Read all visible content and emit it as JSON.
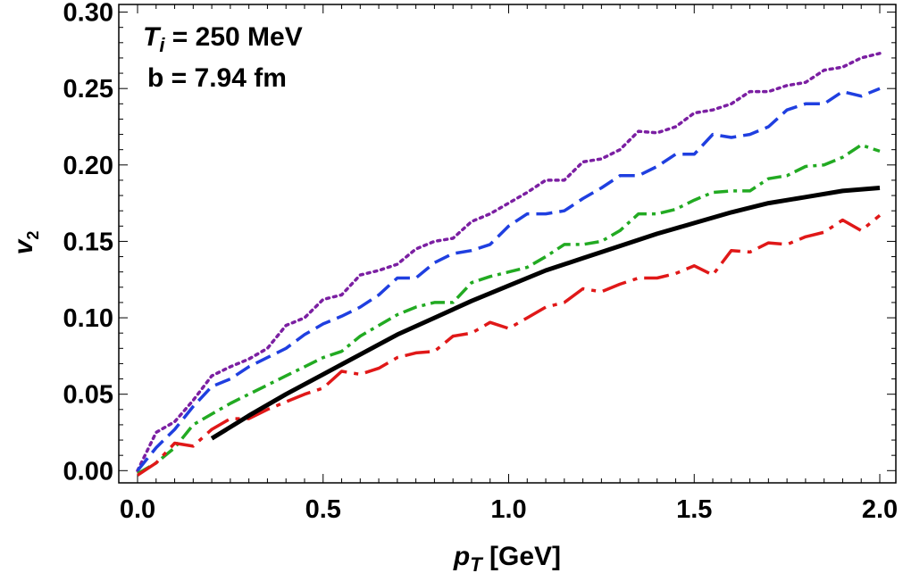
{
  "chart_data": {
    "type": "line",
    "xlabel": "p_T [GeV]",
    "xlabel_parts": {
      "main": "p",
      "sub": "T",
      "rest": " [GeV]"
    },
    "ylabel": "v_2",
    "ylabel_parts": {
      "main": "v",
      "sub": "2"
    },
    "xlim": [
      0.0,
      2.0
    ],
    "ylim": [
      -0.008,
      0.305
    ],
    "xticks": [
      0.0,
      0.5,
      1.0,
      1.5,
      2.0
    ],
    "xtick_labels": [
      "0.0",
      "0.5",
      "1.0",
      "1.5",
      "2.0"
    ],
    "yticks": [
      0.0,
      0.05,
      0.1,
      0.15,
      0.2,
      0.25,
      0.3
    ],
    "ytick_labels": [
      "0.00",
      "0.05",
      "0.10",
      "0.15",
      "0.20",
      "0.25",
      "0.30"
    ],
    "grid": false,
    "annotations": {
      "line1_main": "T",
      "line1_sub": "i",
      "line1_rest": " = 250 MeV",
      "line2": "b = 7.94 fm"
    },
    "series": [
      {
        "color": "#7b1fa2",
        "style": "dotted",
        "x": [
          0.0,
          0.05,
          0.1,
          0.15,
          0.2,
          0.25,
          0.3,
          0.35,
          0.4,
          0.45,
          0.5,
          0.55,
          0.6,
          0.65,
          0.7,
          0.75,
          0.8,
          0.85,
          0.9,
          0.95,
          1.0,
          1.05,
          1.1,
          1.15,
          1.2,
          1.25,
          1.3,
          1.35,
          1.4,
          1.45,
          1.5,
          1.55,
          1.6,
          1.65,
          1.7,
          1.75,
          1.8,
          1.85,
          1.9,
          1.95,
          2.0
        ],
        "y": [
          0.0,
          0.025,
          0.032,
          0.046,
          0.062,
          0.068,
          0.073,
          0.08,
          0.095,
          0.1,
          0.112,
          0.115,
          0.128,
          0.131,
          0.135,
          0.145,
          0.15,
          0.152,
          0.163,
          0.168,
          0.175,
          0.182,
          0.19,
          0.19,
          0.202,
          0.204,
          0.21,
          0.222,
          0.221,
          0.225,
          0.234,
          0.236,
          0.24,
          0.248,
          0.248,
          0.252,
          0.254,
          0.262,
          0.264,
          0.27,
          0.273
        ]
      },
      {
        "color": "#1f3fe0",
        "style": "dashed",
        "x": [
          0.0,
          0.05,
          0.1,
          0.15,
          0.2,
          0.25,
          0.3,
          0.35,
          0.4,
          0.45,
          0.5,
          0.55,
          0.6,
          0.65,
          0.7,
          0.75,
          0.8,
          0.85,
          0.9,
          0.95,
          1.0,
          1.05,
          1.1,
          1.15,
          1.2,
          1.25,
          1.3,
          1.35,
          1.4,
          1.45,
          1.5,
          1.55,
          1.6,
          1.65,
          1.7,
          1.75,
          1.8,
          1.85,
          1.9,
          1.95,
          2.0
        ],
        "y": [
          0.0,
          0.015,
          0.027,
          0.042,
          0.055,
          0.06,
          0.068,
          0.074,
          0.08,
          0.089,
          0.096,
          0.101,
          0.107,
          0.115,
          0.126,
          0.126,
          0.136,
          0.142,
          0.144,
          0.148,
          0.16,
          0.168,
          0.168,
          0.17,
          0.178,
          0.185,
          0.193,
          0.193,
          0.199,
          0.207,
          0.207,
          0.22,
          0.218,
          0.22,
          0.225,
          0.236,
          0.24,
          0.24,
          0.248,
          0.245,
          0.25
        ]
      },
      {
        "color": "#22aa22",
        "style": "dashdot",
        "x": [
          0.0,
          0.05,
          0.1,
          0.15,
          0.2,
          0.25,
          0.3,
          0.35,
          0.4,
          0.45,
          0.5,
          0.55,
          0.6,
          0.65,
          0.7,
          0.75,
          0.8,
          0.85,
          0.9,
          0.95,
          1.0,
          1.05,
          1.1,
          1.15,
          1.2,
          1.25,
          1.3,
          1.35,
          1.4,
          1.45,
          1.5,
          1.55,
          1.6,
          1.65,
          1.7,
          1.75,
          1.8,
          1.85,
          1.9,
          1.95,
          2.0
        ],
        "y": [
          -0.002,
          0.005,
          0.015,
          0.03,
          0.037,
          0.044,
          0.05,
          0.056,
          0.062,
          0.068,
          0.074,
          0.078,
          0.088,
          0.095,
          0.102,
          0.107,
          0.11,
          0.11,
          0.123,
          0.127,
          0.13,
          0.133,
          0.14,
          0.148,
          0.148,
          0.15,
          0.157,
          0.168,
          0.168,
          0.171,
          0.177,
          0.182,
          0.183,
          0.183,
          0.191,
          0.193,
          0.199,
          0.2,
          0.205,
          0.213,
          0.209
        ]
      },
      {
        "color": "#e01818",
        "style": "longdash",
        "x": [
          0.0,
          0.05,
          0.1,
          0.15,
          0.2,
          0.25,
          0.3,
          0.35,
          0.4,
          0.45,
          0.5,
          0.55,
          0.6,
          0.65,
          0.7,
          0.75,
          0.8,
          0.85,
          0.9,
          0.95,
          1.0,
          1.05,
          1.1,
          1.15,
          1.2,
          1.25,
          1.3,
          1.35,
          1.4,
          1.45,
          1.5,
          1.55,
          1.6,
          1.65,
          1.7,
          1.75,
          1.8,
          1.85,
          1.9,
          1.95,
          2.0
        ],
        "y": [
          -0.003,
          0.005,
          0.018,
          0.016,
          0.027,
          0.034,
          0.034,
          0.04,
          0.045,
          0.05,
          0.054,
          0.065,
          0.063,
          0.067,
          0.074,
          0.077,
          0.078,
          0.088,
          0.09,
          0.097,
          0.093,
          0.1,
          0.107,
          0.11,
          0.119,
          0.117,
          0.122,
          0.126,
          0.126,
          0.129,
          0.134,
          0.128,
          0.144,
          0.143,
          0.149,
          0.148,
          0.153,
          0.156,
          0.164,
          0.157,
          0.167
        ]
      },
      {
        "color": "#000000",
        "style": "solid",
        "x": [
          0.2,
          0.3,
          0.4,
          0.5,
          0.6,
          0.7,
          0.8,
          0.9,
          1.0,
          1.1,
          1.2,
          1.3,
          1.4,
          1.5,
          1.6,
          1.7,
          1.8,
          1.9,
          2.0
        ],
        "y": [
          0.021,
          0.036,
          0.05,
          0.063,
          0.076,
          0.089,
          0.1,
          0.111,
          0.121,
          0.131,
          0.139,
          0.147,
          0.155,
          0.162,
          0.169,
          0.175,
          0.179,
          0.183,
          0.185
        ]
      }
    ]
  }
}
